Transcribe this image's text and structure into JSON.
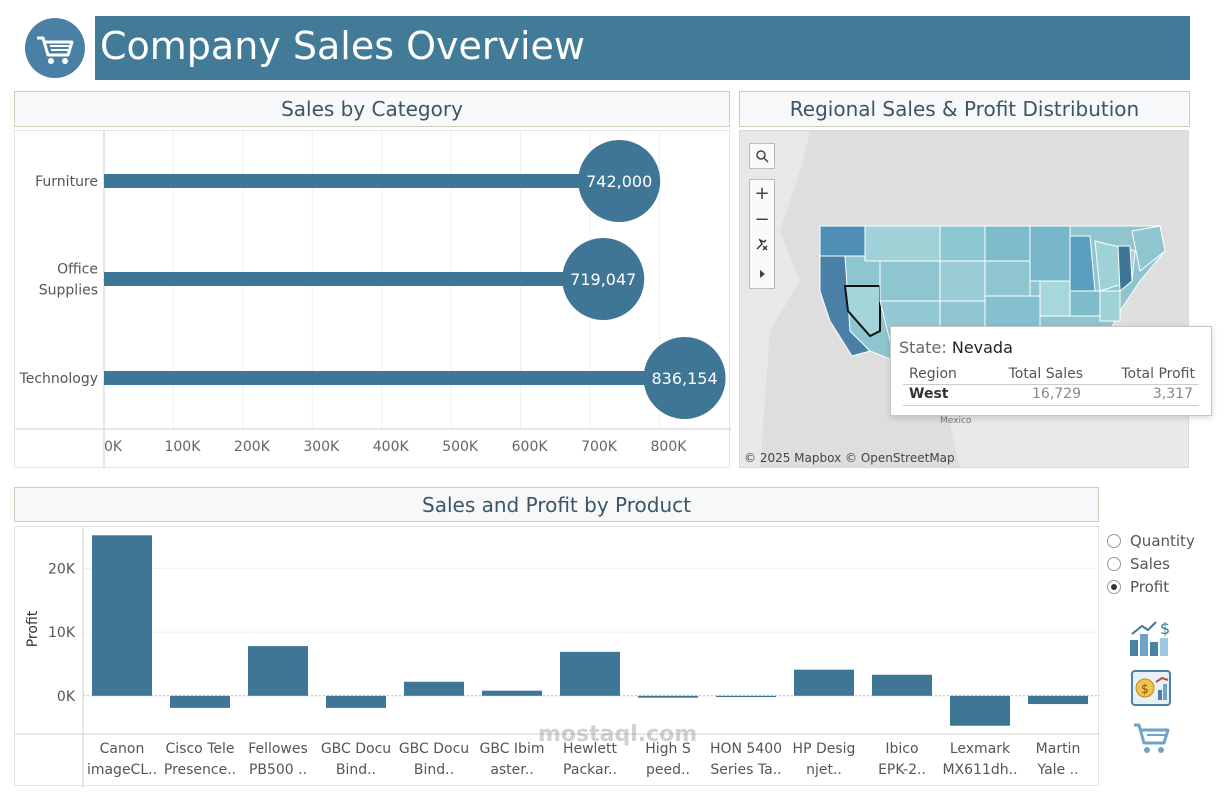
{
  "header": {
    "title": "Company Sales Overview",
    "logo_icon": "shopping-cart-icon"
  },
  "category_panel": {
    "title": "Sales by Category"
  },
  "map_panel": {
    "title": "Regional Sales & Profit Distribution",
    "credit": "© 2025 Mapbox © OpenStreetMap",
    "controls": [
      "search-icon",
      "zoom-in-icon",
      "zoom-out-icon",
      "pin-reset-icon",
      "expand-arrow-icon"
    ],
    "map_labels": {
      "mexico": "Mexico"
    },
    "tooltip": {
      "state_label": "State:",
      "state_value": "Nevada",
      "columns": [
        "Region",
        "Total Sales",
        "Total Profit"
      ],
      "row": {
        "region": "West",
        "sales": "16,729",
        "profit": "3,317"
      }
    }
  },
  "product_panel": {
    "title": "Sales and Profit by Product",
    "ylabel": "Profit"
  },
  "measure_selector": {
    "options": [
      "Quantity",
      "Sales",
      "Profit"
    ],
    "selected": "Profit"
  },
  "side_icons": [
    "chart-dollar-icon",
    "money-report-icon",
    "cart-icon"
  ],
  "watermark": "mostaql.com",
  "colors": {
    "primary": "#427b98",
    "header_bg": "#427b98",
    "bar": "#3f7696",
    "tooltip_border": "#c7c7c7"
  },
  "chart_data": [
    {
      "type": "bar",
      "orientation": "horizontal",
      "title": "Sales by Category",
      "categories": [
        "Furniture",
        "Office Supplies",
        "Technology"
      ],
      "values": [
        742000,
        719047,
        836154
      ],
      "value_labels": [
        "742,000",
        "719,047",
        "836,154"
      ],
      "xticks": [
        "0K",
        "100K",
        "200K",
        "300K",
        "400K",
        "500K",
        "600K",
        "700K",
        "800K"
      ],
      "xlim": [
        0,
        880000
      ]
    },
    {
      "type": "bar",
      "title": "Sales and Profit by Product",
      "ylabel": "Profit",
      "categories": [
        "Canon imageCL..",
        "Cisco Tele Presence..",
        "Fellowes PB500 ..",
        "GBC Docu Bind..",
        "GBC Docu Bind..",
        "GBC Ibim aster..",
        "Hewlett Packar..",
        "High S peed..",
        "HON 5400 Series Ta..",
        "HP Desig njet..",
        "Ibico EPK-2..",
        "Lexmark MX611dh..",
        "Martin Yale .."
      ],
      "label_lines": [
        [
          "Canon",
          "imageCL.."
        ],
        [
          "Cisco Tele",
          "Presence.."
        ],
        [
          "Fellowes",
          "PB500 .."
        ],
        [
          "GBC Docu",
          "Bind.."
        ],
        [
          "GBC Docu",
          "Bind.."
        ],
        [
          "GBC Ibim",
          "aster.."
        ],
        [
          "Hewlett",
          "Packar.."
        ],
        [
          "High S",
          "peed.."
        ],
        [
          "HON 5400",
          "Series Ta.."
        ],
        [
          "HP Desig",
          "njet.."
        ],
        [
          "Ibico",
          "EPK-2.."
        ],
        [
          "Lexmark",
          "MX611dh.."
        ],
        [
          "Martin",
          "Yale .."
        ]
      ],
      "values": [
        25200,
        -1900,
        7800,
        -1900,
        2200,
        800,
        6900,
        -300,
        -200,
        4100,
        3300,
        -4700,
        -1300
      ],
      "yticks": [
        "0K",
        "10K",
        "20K"
      ],
      "ylim": [
        -6000,
        26500
      ]
    }
  ]
}
